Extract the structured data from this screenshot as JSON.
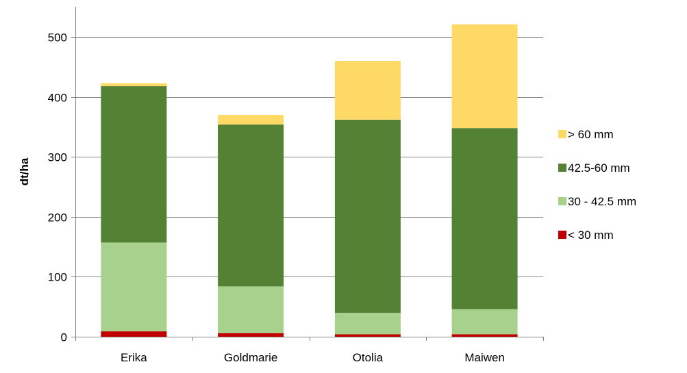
{
  "chart_data": {
    "type": "bar",
    "stacked": true,
    "categories": [
      "Erika",
      "Goldmarie",
      "Otolia",
      "Maiwen"
    ],
    "series": [
      {
        "name": "< 30 mm",
        "color": "#c00000",
        "values": [
          9,
          6,
          4,
          4
        ]
      },
      {
        "name": "30 - 42.5 mm",
        "color": "#a9d18e",
        "values": [
          148,
          78,
          36,
          42
        ]
      },
      {
        "name": "42.5-60 mm",
        "color": "#548235",
        "values": [
          261,
          270,
          322,
          302
        ]
      },
      {
        "name": "> 60 mm",
        "color": "#ffd966",
        "values": [
          5,
          16,
          98,
          173
        ]
      }
    ],
    "title": "",
    "xlabel": "",
    "ylabel": "dt/ha",
    "ylim": [
      0,
      500
    ],
    "yticks": [
      0,
      100,
      200,
      300,
      400,
      500
    ],
    "grid": true,
    "legend_position": "right",
    "legend_order": [
      "> 60 mm",
      "42.5-60 mm",
      "30 - 42.5 mm",
      "< 30 mm"
    ]
  }
}
